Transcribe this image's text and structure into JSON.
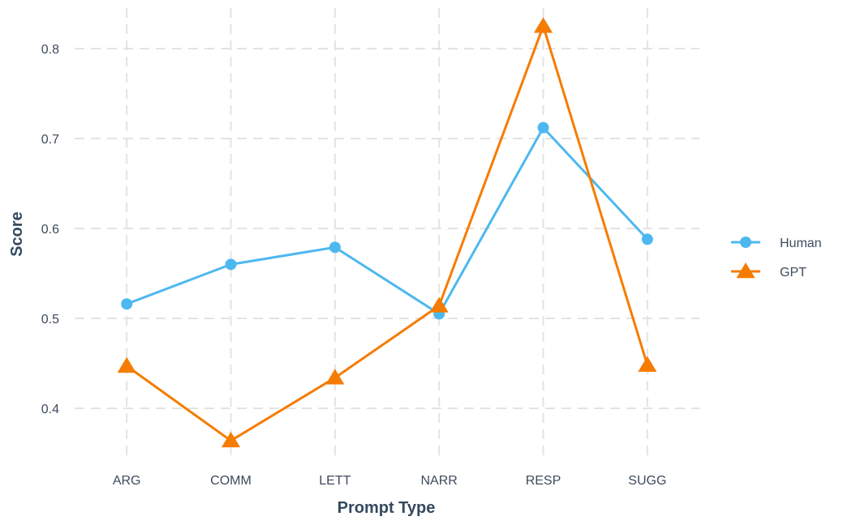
{
  "chart_data": {
    "type": "line",
    "title": "",
    "xlabel": "Prompt Type",
    "ylabel": "Score",
    "categories": [
      "ARG",
      "COMM",
      "LETT",
      "NARR",
      "RESP",
      "SUGG"
    ],
    "ylim": [
      0.345,
      0.845
    ],
    "yticks": [
      0.4,
      0.5,
      0.6,
      0.7,
      0.8
    ],
    "ytick_labels": [
      "0.4",
      "0.5",
      "0.6",
      "0.7",
      "0.8"
    ],
    "grid": true,
    "legend_position": "right",
    "series": [
      {
        "name": "Human",
        "color": "#4db8f0",
        "marker": "circle",
        "values": [
          0.516,
          0.56,
          0.579,
          0.505,
          0.712,
          0.588
        ]
      },
      {
        "name": "GPT",
        "color": "#f57c00",
        "marker": "triangle",
        "values": [
          0.447,
          0.364,
          0.434,
          0.514,
          0.825,
          0.448
        ]
      }
    ]
  }
}
